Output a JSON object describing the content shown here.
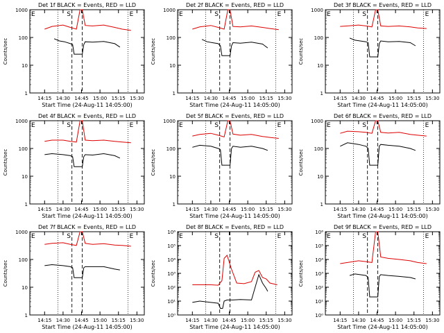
{
  "figure": {
    "xlabel": "Start Time (24-Aug-11 14:05:00)",
    "ylabel": "Counts/sec",
    "xticks": [
      "14:15",
      "14:30",
      "14:45",
      "15:00",
      "15:15",
      "15:30"
    ],
    "colors": {
      "events": "#000000",
      "lld": "#dd0000"
    }
  },
  "chart_data": [
    {
      "type": "line",
      "title": "Det 1f BLACK = Events, RED = LLD",
      "xlabel": "Start Time (24-Aug-11 14:05:00)",
      "ylabel": "Counts/sec",
      "yscale": "log",
      "ylim": [
        1,
        1000
      ],
      "yticks": [
        "1",
        "10",
        "100",
        "1000"
      ],
      "markers": [
        "E",
        "S",
        "E"
      ],
      "series": [
        {
          "color": "red",
          "x": [
            14.25,
            14.35,
            14.5,
            14.6,
            14.68,
            14.73,
            14.76,
            14.8,
            14.9,
            15.05,
            15.2,
            15.3,
            15.42
          ],
          "values": [
            200,
            250,
            280,
            230,
            200,
            1000,
            1000,
            270,
            260,
            280,
            230,
            200,
            180
          ]
        },
        {
          "color": "black",
          "x": [
            14.38,
            14.45,
            14.52,
            14.6,
            14.63,
            14.65,
            14.76,
            14.78,
            14.8,
            14.9,
            15.05,
            15.2,
            15.27
          ],
          "values": [
            90,
            75,
            70,
            60,
            55,
            25,
            25,
            55,
            70,
            68,
            72,
            60,
            45
          ]
        }
      ]
    },
    {
      "type": "line",
      "title": "Det 2f BLACK = Events, RED = LLD",
      "xlabel": "Start Time (24-Aug-11 14:05:00)",
      "ylabel": "Counts/sec",
      "yscale": "log",
      "ylim": [
        1,
        1000
      ],
      "yticks": [
        "1",
        "10",
        "100",
        "1000"
      ],
      "markers": [
        "E",
        "S",
        "E"
      ],
      "series": [
        {
          "color": "red",
          "x": [
            14.25,
            14.35,
            14.5,
            14.6,
            14.68,
            14.73,
            14.76,
            14.8,
            14.9,
            15.05,
            15.2,
            15.3,
            15.42
          ],
          "values": [
            200,
            240,
            270,
            230,
            200,
            1000,
            1000,
            250,
            240,
            260,
            230,
            210,
            190
          ]
        },
        {
          "color": "black",
          "x": [
            14.38,
            14.45,
            14.52,
            14.6,
            14.63,
            14.65,
            14.76,
            14.78,
            14.8,
            14.9,
            15.05,
            15.2,
            15.27
          ],
          "values": [
            85,
            70,
            65,
            60,
            50,
            22,
            22,
            50,
            65,
            62,
            68,
            58,
            42
          ]
        }
      ]
    },
    {
      "type": "line",
      "title": "Det 3f BLACK = Events, RED = LLD",
      "xlabel": "Start Time (24-Aug-11 14:05:00)",
      "ylabel": "Counts/sec",
      "yscale": "log",
      "ylim": [
        1,
        1000
      ],
      "yticks": [
        "1",
        "10",
        "100",
        "1000"
      ],
      "markers": [
        "E",
        "S",
        "E"
      ],
      "series": [
        {
          "color": "red",
          "x": [
            14.25,
            14.35,
            14.5,
            14.6,
            14.68,
            14.73,
            14.76,
            14.8,
            14.9,
            15.05,
            15.2,
            15.3,
            15.42
          ],
          "values": [
            250,
            260,
            280,
            260,
            240,
            1000,
            1000,
            260,
            250,
            260,
            240,
            220,
            210
          ]
        },
        {
          "color": "black",
          "x": [
            14.38,
            14.45,
            14.52,
            14.6,
            14.63,
            14.65,
            14.76,
            14.78,
            14.8,
            14.9,
            15.05,
            15.2,
            15.27
          ],
          "values": [
            95,
            80,
            75,
            70,
            65,
            20,
            20,
            60,
            75,
            70,
            72,
            65,
            50
          ]
        }
      ]
    },
    {
      "type": "line",
      "title": "Det 4f BLACK = Events, RED = LLD",
      "xlabel": "Start Time (24-Aug-11 14:05:00)",
      "ylabel": "Counts/sec",
      "yscale": "log",
      "ylim": [
        1,
        1000
      ],
      "yticks": [
        "1",
        "10",
        "100",
        "1000"
      ],
      "markers": [
        "E",
        "S",
        "E"
      ],
      "series": [
        {
          "color": "red",
          "x": [
            14.25,
            14.35,
            14.5,
            14.6,
            14.68,
            14.73,
            14.76,
            14.8,
            14.9,
            15.05,
            15.2,
            15.3,
            15.42
          ],
          "values": [
            180,
            200,
            200,
            180,
            170,
            1000,
            1000,
            200,
            190,
            200,
            180,
            170,
            160
          ]
        },
        {
          "color": "black",
          "x": [
            14.25,
            14.35,
            14.5,
            14.6,
            14.63,
            14.65,
            14.76,
            14.78,
            14.8,
            14.9,
            15.05,
            15.2,
            15.27
          ],
          "values": [
            60,
            65,
            60,
            55,
            50,
            22,
            22,
            50,
            60,
            58,
            65,
            55,
            45
          ]
        }
      ]
    },
    {
      "type": "line",
      "title": "Det 5f BLACK = Events, RED = LLD",
      "xlabel": "Start Time (24-Aug-11 14:05:00)",
      "ylabel": "Counts/sec",
      "yscale": "log",
      "ylim": [
        1,
        1000
      ],
      "yticks": [
        "1",
        "10",
        "100",
        "1000"
      ],
      "markers": [
        "E",
        "S",
        "E"
      ],
      "series": [
        {
          "color": "red",
          "x": [
            14.25,
            14.35,
            14.5,
            14.6,
            14.68,
            14.73,
            14.76,
            14.8,
            14.9,
            15.05,
            15.2,
            15.3,
            15.42
          ],
          "values": [
            280,
            320,
            350,
            300,
            260,
            1000,
            1000,
            330,
            300,
            320,
            270,
            250,
            230
          ]
        },
        {
          "color": "black",
          "x": [
            14.25,
            14.35,
            14.5,
            14.6,
            14.63,
            14.65,
            14.76,
            14.78,
            14.8,
            14.9,
            15.05,
            15.2,
            15.27
          ],
          "values": [
            110,
            130,
            120,
            100,
            90,
            25,
            25,
            100,
            120,
            110,
            120,
            100,
            85
          ]
        }
      ]
    },
    {
      "type": "line",
      "title": "Det 6f BLACK = Events, RED = LLD",
      "xlabel": "Start Time (24-Aug-11 14:05:00)",
      "ylabel": "Counts/sec",
      "yscale": "log",
      "ylim": [
        1,
        1000
      ],
      "yticks": [
        "1",
        "10",
        "100",
        "1000"
      ],
      "markers": [
        "E",
        "S",
        "E"
      ],
      "series": [
        {
          "color": "red",
          "x": [
            14.25,
            14.35,
            14.5,
            14.6,
            14.68,
            14.73,
            14.76,
            14.8,
            14.9,
            15.05,
            15.2,
            15.3,
            15.42
          ],
          "values": [
            350,
            420,
            400,
            380,
            350,
            1000,
            1000,
            380,
            360,
            380,
            320,
            300,
            280
          ]
        },
        {
          "color": "black",
          "x": [
            14.25,
            14.35,
            14.5,
            14.6,
            14.63,
            14.65,
            14.76,
            14.78,
            14.8,
            14.9,
            15.05,
            15.2,
            15.27
          ],
          "values": [
            120,
            160,
            140,
            120,
            100,
            25,
            25,
            120,
            140,
            130,
            120,
            100,
            85
          ]
        }
      ]
    },
    {
      "type": "line",
      "title": "Det 7f BLACK = Events, RED = LLD",
      "xlabel": "Start Time (24-Aug-11 14:05:00)",
      "ylabel": "Counts/sec",
      "yscale": "log",
      "ylim": [
        1,
        1000
      ],
      "yticks": [
        "1",
        "10",
        "100",
        "1000"
      ],
      "markers": [
        "E",
        "S",
        "E"
      ],
      "series": [
        {
          "color": "red",
          "x": [
            14.25,
            14.35,
            14.5,
            14.6,
            14.68,
            14.73,
            14.76,
            14.8,
            14.9,
            15.05,
            15.2,
            15.3,
            15.42
          ],
          "values": [
            350,
            380,
            400,
            350,
            320,
            1000,
            1000,
            380,
            350,
            370,
            330,
            320,
            300
          ]
        },
        {
          "color": "black",
          "x": [
            14.25,
            14.35,
            14.5,
            14.6,
            14.63,
            14.65,
            14.76,
            14.78,
            14.8,
            14.9,
            15.05,
            15.2,
            15.27
          ],
          "values": [
            60,
            65,
            60,
            55,
            50,
            22,
            22,
            50,
            55,
            55,
            55,
            45,
            42
          ]
        }
      ]
    },
    {
      "type": "line",
      "title": "Det 8f BLACK = Events, RED = LLD",
      "xlabel": "Start Time (24-Aug-11 14:05:00)",
      "ylabel": "Counts/sec",
      "yscale": "log",
      "ylim": [
        1,
        1000000
      ],
      "yticks": [
        "10⁰",
        "10¹",
        "10²",
        "10³",
        "10⁴",
        "10⁵",
        "10⁶"
      ],
      "markers": [
        "E",
        "S",
        "E"
      ],
      "series": [
        {
          "color": "red",
          "x": [
            14.25,
            14.35,
            14.5,
            14.6,
            14.65,
            14.68,
            14.72,
            14.78,
            14.85,
            14.95,
            15.05,
            15.1,
            15.15,
            15.2,
            15.25,
            15.3,
            15.4
          ],
          "values": [
            150,
            150,
            150,
            140,
            300,
            12000,
            20000,
            2000,
            200,
            180,
            250,
            1200,
            1600,
            500,
            400,
            200,
            150
          ]
        },
        {
          "color": "black",
          "x": [
            14.25,
            14.35,
            14.5,
            14.6,
            14.63,
            14.66,
            14.68,
            14.72,
            14.8,
            14.9,
            15.05,
            15.1,
            15.15,
            15.2,
            15.25,
            15.27
          ],
          "values": [
            8,
            10,
            8,
            7,
            3,
            3,
            10,
            12,
            12,
            13,
            12,
            100,
            800,
            200,
            80,
            50
          ]
        }
      ]
    },
    {
      "type": "line",
      "title": "Det 9f BLACK = Events, RED = LLD",
      "xlabel": "Start Time (24-Aug-11 14:05:00)",
      "ylabel": "Counts/sec",
      "yscale": "log",
      "ylim": [
        1,
        1000000
      ],
      "yticks": [
        "10⁰",
        "10¹",
        "10²",
        "10³",
        "10⁴",
        "10⁵",
        "10⁶"
      ],
      "markers": [
        "E",
        "S",
        "E"
      ],
      "series": [
        {
          "color": "red",
          "x": [
            14.25,
            14.35,
            14.5,
            14.6,
            14.68,
            14.73,
            14.76,
            14.8,
            14.9,
            15.05,
            15.2,
            15.3,
            15.42
          ],
          "values": [
            5000,
            6000,
            8000,
            7000,
            6000,
            1000000,
            1000000,
            15000,
            12000,
            10000,
            8000,
            6000,
            5000
          ]
        },
        {
          "color": "black",
          "x": [
            14.38,
            14.45,
            14.52,
            14.6,
            14.63,
            14.65,
            14.76,
            14.78,
            14.8,
            14.9,
            15.05,
            15.2,
            15.27
          ],
          "values": [
            700,
            900,
            800,
            700,
            500,
            20,
            20,
            600,
            800,
            700,
            600,
            500,
            400
          ]
        }
      ]
    }
  ]
}
